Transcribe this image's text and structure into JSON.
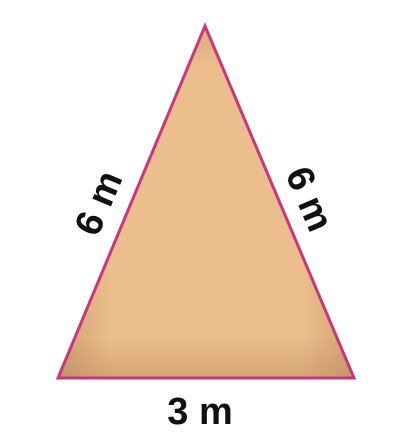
{
  "triangle": {
    "left_side_label": "6 m",
    "right_side_label": "6 m",
    "base_label": "3 m",
    "fill_color": "#EDBE8D",
    "edge_color": "#C8377E"
  }
}
